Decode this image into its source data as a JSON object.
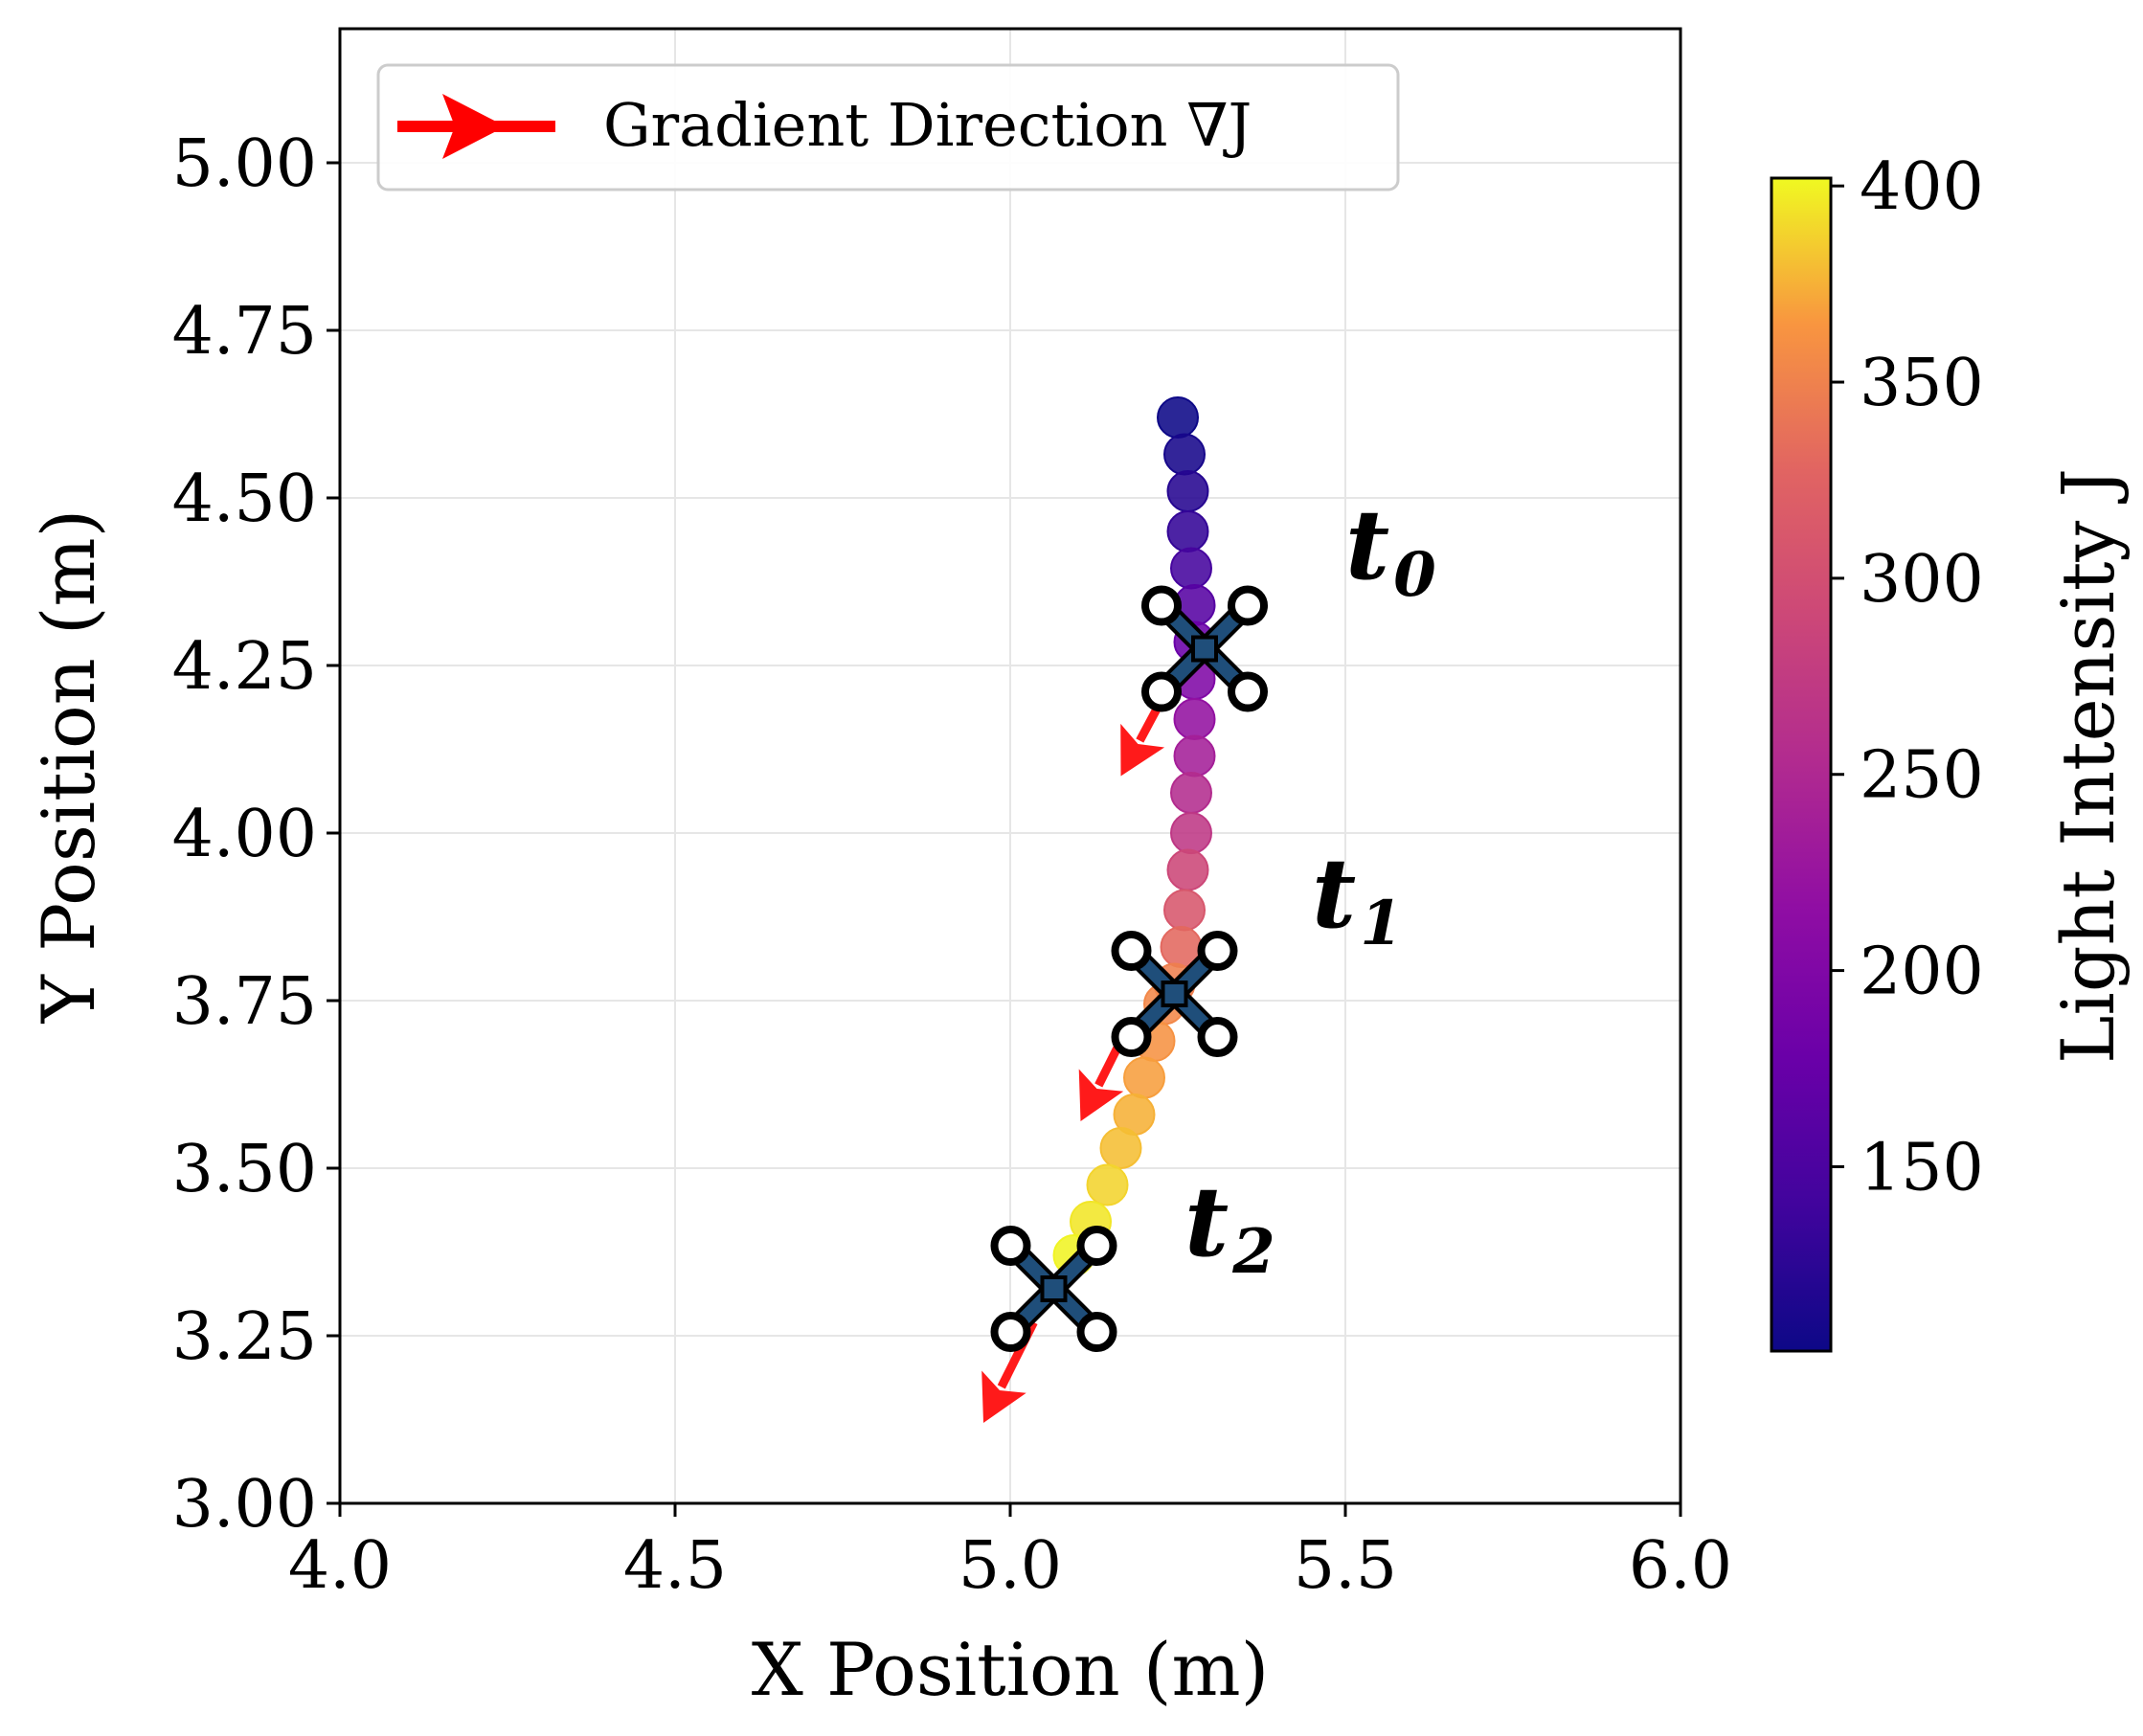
{
  "chart_data": {
    "type": "scatter",
    "title": "",
    "xlabel": "X Position (m)",
    "ylabel": "Y Position (m)",
    "xlim": [
      4.0,
      6.0
    ],
    "ylim": [
      3.0,
      5.2
    ],
    "xticks": [
      "4.0",
      "4.5",
      "5.0",
      "5.5",
      "6.0"
    ],
    "yticks": [
      "3.00",
      "3.25",
      "3.50",
      "3.75",
      "4.00",
      "4.25",
      "4.50",
      "4.75",
      "5.00"
    ],
    "grid": true,
    "legend": {
      "position": "top-left",
      "entries": [
        "Gradient Direction ∇J"
      ]
    },
    "colorbar": {
      "label": "Light Intensity J",
      "range": [
        103,
        402
      ],
      "ticks": [
        "150",
        "200",
        "250",
        "300",
        "350",
        "400"
      ],
      "colormap": "plasma"
    },
    "trajectory": [
      {
        "x": 5.25,
        "y": 4.62,
        "J": 103
      },
      {
        "x": 5.26,
        "y": 4.565,
        "J": 110
      },
      {
        "x": 5.265,
        "y": 4.51,
        "J": 120
      },
      {
        "x": 5.265,
        "y": 4.45,
        "J": 130
      },
      {
        "x": 5.27,
        "y": 4.395,
        "J": 145
      },
      {
        "x": 5.275,
        "y": 4.34,
        "J": 160
      },
      {
        "x": 5.275,
        "y": 4.285,
        "J": 178
      },
      {
        "x": 5.275,
        "y": 4.23,
        "J": 200
      },
      {
        "x": 5.275,
        "y": 4.17,
        "J": 220
      },
      {
        "x": 5.275,
        "y": 4.115,
        "J": 238
      },
      {
        "x": 5.27,
        "y": 4.06,
        "J": 255
      },
      {
        "x": 5.27,
        "y": 4.0,
        "J": 270
      },
      {
        "x": 5.265,
        "y": 3.945,
        "J": 290
      },
      {
        "x": 5.26,
        "y": 3.885,
        "J": 310
      },
      {
        "x": 5.255,
        "y": 3.83,
        "J": 330
      },
      {
        "x": 5.245,
        "y": 3.775,
        "J": 348
      },
      {
        "x": 5.23,
        "y": 3.745,
        "J": 355
      },
      {
        "x": 5.215,
        "y": 3.69,
        "J": 362
      },
      {
        "x": 5.2,
        "y": 3.635,
        "J": 368
      },
      {
        "x": 5.185,
        "y": 3.58,
        "J": 375
      },
      {
        "x": 5.165,
        "y": 3.53,
        "J": 380
      },
      {
        "x": 5.145,
        "y": 3.475,
        "J": 388
      },
      {
        "x": 5.12,
        "y": 3.42,
        "J": 395
      },
      {
        "x": 5.095,
        "y": 3.37,
        "J": 400
      }
    ],
    "drones": [
      {
        "label": "t",
        "sub": "0",
        "x": 5.29,
        "y": 4.275,
        "label_x": 5.5,
        "label_y": 4.38
      },
      {
        "label": "t",
        "sub": "1",
        "x": 5.245,
        "y": 3.76,
        "label_x": 5.45,
        "label_y": 3.86
      },
      {
        "label": "t",
        "sub": "2",
        "x": 5.065,
        "y": 3.32,
        "label_x": 5.26,
        "label_y": 3.37
      }
    ],
    "gradient_arrows": [
      {
        "x0": 5.24,
        "y0": 4.225,
        "x1": 5.165,
        "y1": 4.085
      },
      {
        "x0": 5.175,
        "y0": 3.71,
        "x1": 5.105,
        "y1": 3.57
      },
      {
        "x0": 5.035,
        "y0": 3.27,
        "x1": 4.96,
        "y1": 3.12
      }
    ]
  }
}
